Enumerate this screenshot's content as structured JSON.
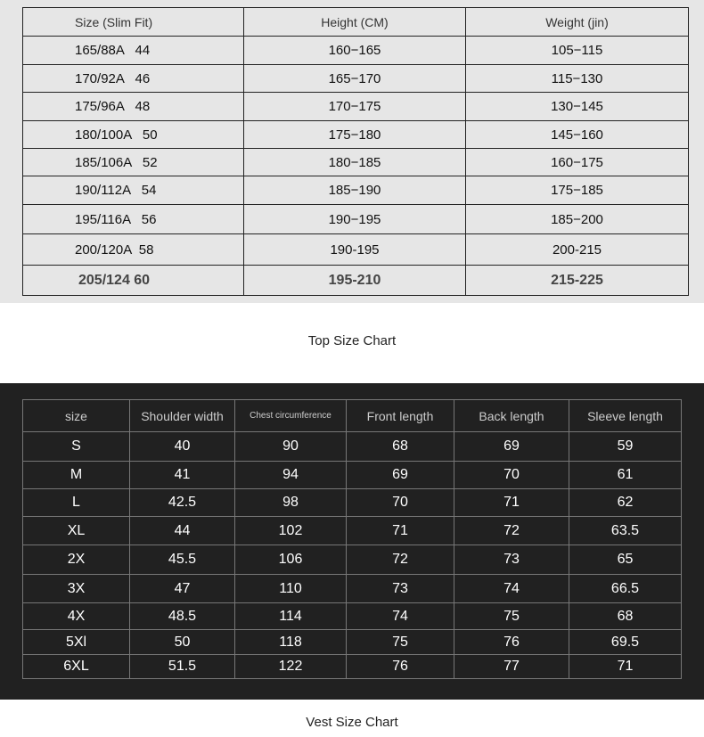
{
  "top_chart": {
    "headers": [
      "Size (Slim Fit)",
      "Height (CM)",
      "Weight (jin)"
    ],
    "rows": [
      [
        "165/88A   44",
        "160−165",
        "105−115"
      ],
      [
        "170/92A   46",
        "165−170",
        "115−130"
      ],
      [
        "175/96A   48",
        "170−175",
        "130−145"
      ],
      [
        "180/100A   50",
        "175−180",
        "145−160"
      ],
      [
        "185/106A   52",
        "180−185",
        "160−175"
      ],
      [
        "190/112A   54",
        "185−190",
        "175−185"
      ],
      [
        "195/116A   56",
        "190−195",
        "185−200"
      ],
      [
        "200/120A  58",
        "190-195",
        "200-215"
      ],
      [
        "205/124 60",
        "195-210",
        "215-225"
      ]
    ],
    "caption": "Top Size Chart"
  },
  "vest_chart": {
    "headers": [
      "size",
      "Shoulder width",
      "Chest circumference",
      "Front length",
      "Back length",
      "Sleeve length"
    ],
    "rows": [
      [
        "S",
        "40",
        "90",
        "68",
        "69",
        "59"
      ],
      [
        "M",
        "41",
        "94",
        "69",
        "70",
        "61"
      ],
      [
        "L",
        "42.5",
        "98",
        "70",
        "71",
        "62"
      ],
      [
        "XL",
        "44",
        "102",
        "71",
        "72",
        "63.5"
      ],
      [
        "2X",
        "45.5",
        "106",
        "72",
        "73",
        "65"
      ],
      [
        "3X",
        "47",
        "110",
        "73",
        "74",
        "66.5"
      ],
      [
        "4X",
        "48.5",
        "114",
        "74",
        "75",
        "68"
      ],
      [
        "5Xl",
        "50",
        "118",
        "75",
        "76",
        "69.5"
      ],
      [
        "6XL",
        "51.5",
        "122",
        "76",
        "77",
        "71"
      ]
    ],
    "caption": "Vest Size Chart"
  },
  "colors": {
    "top_bg": "#e6e6e6",
    "vest_bg": "#212121"
  }
}
